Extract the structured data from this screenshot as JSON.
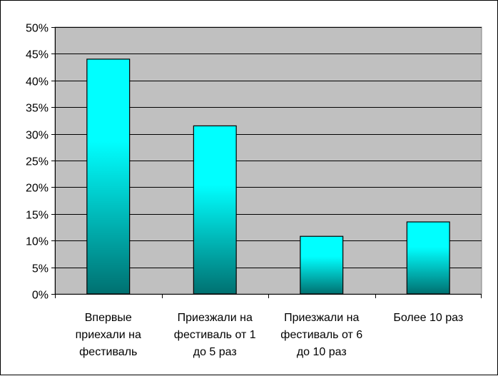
{
  "chart_data": {
    "type": "bar",
    "categories": [
      [
        "Впервые",
        "приехали на",
        "фестиваль"
      ],
      [
        "Приезжали на",
        "фестиваль от 1",
        "до 5 раз"
      ],
      [
        "Приезжали на",
        "фестиваль от 6",
        "до 10 раз"
      ],
      [
        "Более 10 раз"
      ]
    ],
    "values": [
      44,
      31.5,
      10.8,
      13.5
    ],
    "ylim": [
      0,
      50
    ],
    "yticks": [
      "0%",
      "5%",
      "10%",
      "15%",
      "20%",
      "25%",
      "30%",
      "35%",
      "40%",
      "45%",
      "50%"
    ],
    "grid": true,
    "legend": "none",
    "colors": {
      "plot_background": "#c0c0c0",
      "bar_top": "#00ffff",
      "bar_bottom": "#007070",
      "bar_border": "#000000",
      "gridline": "#000000"
    }
  }
}
